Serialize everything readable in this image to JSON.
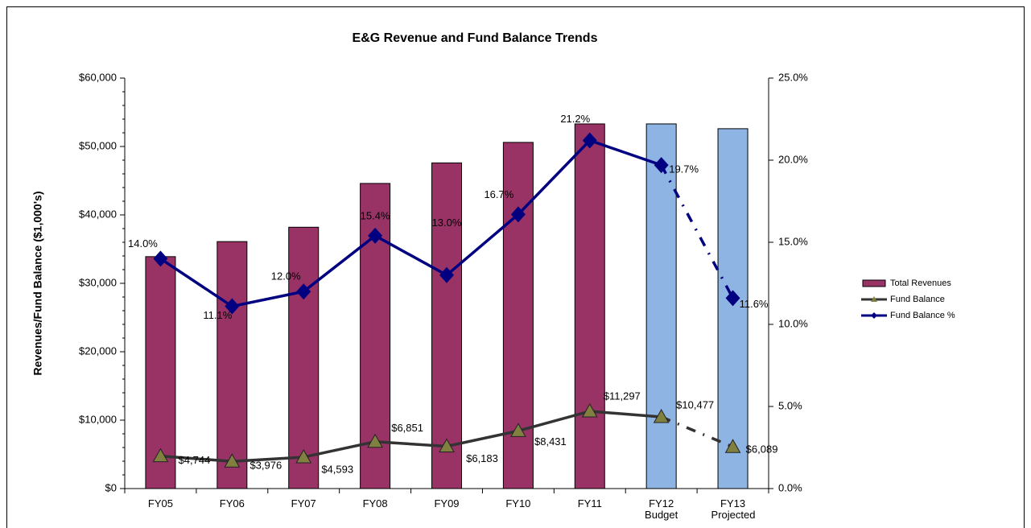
{
  "chart_data": {
    "type": "bar_line",
    "title": "E&G Revenue and Fund Balance Trends",
    "y_label": "Revenues/Fund Balance ($1,000's)",
    "categories": [
      "FY05",
      "FY06",
      "FY07",
      "FY08",
      "FY09",
      "FY10",
      "FY11",
      "FY12 Budget",
      "FY13 Projected"
    ],
    "ylim": [
      0,
      60000
    ],
    "yticks": [
      {
        "value": 0,
        "label": "$0"
      },
      {
        "value": 10000,
        "label": "$10,000"
      },
      {
        "value": 20000,
        "label": "$20,000"
      },
      {
        "value": 30000,
        "label": "$30,000"
      },
      {
        "value": 40000,
        "label": "$40,000"
      },
      {
        "value": 50000,
        "label": "$50,000"
      },
      {
        "value": 60000,
        "label": "$60,000"
      }
    ],
    "y2lim": [
      0,
      25
    ],
    "y2ticks": [
      {
        "value": 0,
        "label": "0.0%"
      },
      {
        "value": 5,
        "label": "5.0%"
      },
      {
        "value": 10,
        "label": "10.0%"
      },
      {
        "value": 15,
        "label": "15.0%"
      },
      {
        "value": 20,
        "label": "20.0%"
      },
      {
        "value": 25,
        "label": "25.0%"
      }
    ],
    "series": [
      {
        "name": "Total Revenues",
        "kind": "bar",
        "color": "#993366",
        "colors": [
          "#993366",
          "#993366",
          "#993366",
          "#993366",
          "#993366",
          "#993366",
          "#993366",
          "#8db4e2",
          "#8db4e2"
        ],
        "values": [
          33900,
          36100,
          38200,
          44600,
          47600,
          50600,
          53300,
          53300,
          52600
        ]
      },
      {
        "name": "Fund Balance",
        "kind": "line",
        "marker": "triangle",
        "color": "#333333",
        "marker_color": "#808040",
        "dashed_segments": [
          7
        ],
        "values": [
          4744,
          3976,
          4593,
          6851,
          6183,
          8431,
          11297,
          10477,
          6089
        ],
        "value_labels": [
          "$4,744",
          "$3,976",
          "$4,593",
          "$6,851",
          "$6,183",
          "$8,431",
          "$11,297",
          "$10,477",
          "$6,089"
        ]
      },
      {
        "name": "Fund Balance %",
        "kind": "line",
        "axis": "y2",
        "marker": "diamond",
        "color": "#000080",
        "marker_color": "#000080",
        "dashed_segments": [
          7
        ],
        "values": [
          14.0,
          11.1,
          12.0,
          15.4,
          13.0,
          16.7,
          21.2,
          19.7,
          11.6
        ],
        "value_labels": [
          "14.0%",
          "11.1%",
          "12.0%",
          "15.4%",
          "13.0%",
          "16.7%",
          "21.2%",
          "19.7%",
          "11.6%"
        ]
      }
    ]
  }
}
